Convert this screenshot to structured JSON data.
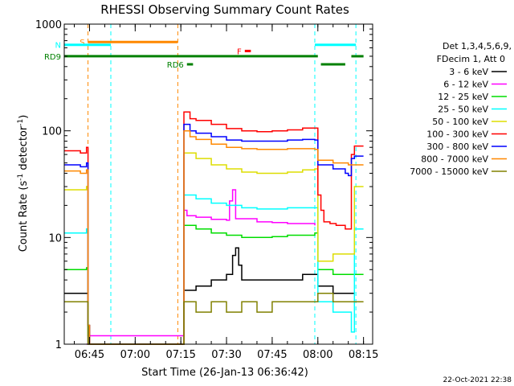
{
  "chart_data": {
    "type": "line",
    "title": "RHESSI Observing Summary Count Rates",
    "xlabel": "Start Time (26-Jan-13 06:36:42)",
    "ylabel": "Count Rate (s⁻¹ detector⁻¹)",
    "ylabel_parts": [
      "Count Rate (s",
      "-1",
      " detector",
      "-1",
      ")"
    ],
    "y_scale": "log",
    "xlim": [
      "06:36:42",
      "08:18:00"
    ],
    "ylim": [
      1,
      1000
    ],
    "x_ticks": [
      "06:45",
      "07:00",
      "07:15",
      "07:30",
      "07:45",
      "08:00",
      "08:15"
    ],
    "y_ticks": [
      "1",
      "10",
      "100",
      "1000"
    ],
    "legend_position": "right",
    "legend_header": [
      "Det 1,3,4,5,6,9,",
      "FDecim 1, Att 0"
    ],
    "series": [
      {
        "name": "3 - 6 keV",
        "color": "#000000",
        "points": [
          [
            "06:36:42",
            3.0
          ],
          [
            "06:44:00",
            3.0
          ],
          [
            "06:44:30",
            1.2
          ],
          [
            "06:45:00",
            1.0
          ],
          [
            "07:15:30",
            1.0
          ],
          [
            "07:16:00",
            3.2
          ],
          [
            "07:20:00",
            3.5
          ],
          [
            "07:25:00",
            4.0
          ],
          [
            "07:30:00",
            4.5
          ],
          [
            "07:32:00",
            6.8
          ],
          [
            "07:33:00",
            8.0
          ],
          [
            "07:34:00",
            5.5
          ],
          [
            "07:35:00",
            4.0
          ],
          [
            "07:40:00",
            4.0
          ],
          [
            "07:45:00",
            4.0
          ],
          [
            "07:50:00",
            4.0
          ],
          [
            "07:55:00",
            4.5
          ],
          [
            "07:58:00",
            4.5
          ],
          [
            "08:00:00",
            3.5
          ],
          [
            "08:05:00",
            3.0
          ],
          [
            "08:10:00",
            3.0
          ],
          [
            "08:12:00",
            3.0
          ]
        ]
      },
      {
        "name": "6 - 12 keV",
        "color": "#ff00ff",
        "points": [
          [
            "06:44:00",
            1.0
          ],
          [
            "06:44:30",
            1.2
          ],
          [
            "07:16:00",
            18.0
          ],
          [
            "07:17:00",
            16.0
          ],
          [
            "07:20:00",
            15.5
          ],
          [
            "07:25:00",
            14.8
          ],
          [
            "07:30:00",
            14.5
          ],
          [
            "07:31:00",
            22.0
          ],
          [
            "07:32:00",
            28.0
          ],
          [
            "07:33:00",
            15.0
          ],
          [
            "07:40:00",
            14.0
          ],
          [
            "07:45:00",
            13.8
          ],
          [
            "07:50:00",
            13.5
          ],
          [
            "07:55:00",
            13.5
          ],
          [
            "07:59:00",
            13.0
          ]
        ]
      },
      {
        "name": "12 - 25 keV",
        "color": "#00dd00",
        "points": [
          [
            "06:36:42",
            5.0
          ],
          [
            "06:43:00",
            5.0
          ],
          [
            "06:44:00",
            5.2
          ],
          [
            "06:44:30",
            1.0
          ],
          [
            "07:15:30",
            1.0
          ],
          [
            "07:16:00",
            13.0
          ],
          [
            "07:20:00",
            12.0
          ],
          [
            "07:25:00",
            11.0
          ],
          [
            "07:30:00",
            10.5
          ],
          [
            "07:35:00",
            10.0
          ],
          [
            "07:40:00",
            10.0
          ],
          [
            "07:45:00",
            10.2
          ],
          [
            "07:50:00",
            10.5
          ],
          [
            "07:55:00",
            10.5
          ],
          [
            "07:59:00",
            11.0
          ],
          [
            "08:00:00",
            5.0
          ],
          [
            "08:05:00",
            4.5
          ],
          [
            "08:10:00",
            4.5
          ],
          [
            "08:12:00",
            4.5
          ],
          [
            "08:13:00",
            4.5
          ],
          [
            "08:15:00",
            4.5
          ]
        ]
      },
      {
        "name": "25 - 50 keV",
        "color": "#00ffff",
        "points": [
          [
            "06:36:42",
            11.0
          ],
          [
            "06:43:00",
            11.0
          ],
          [
            "06:44:00",
            12.0
          ],
          [
            "06:44:30",
            1.5
          ],
          [
            "06:45:00",
            1.0
          ],
          [
            "07:15:30",
            1.0
          ],
          [
            "07:16:00",
            25.0
          ],
          [
            "07:20:00",
            23.0
          ],
          [
            "07:25:00",
            21.0
          ],
          [
            "07:30:00",
            20.0
          ],
          [
            "07:35:00",
            19.0
          ],
          [
            "07:40:00",
            18.5
          ],
          [
            "07:45:00",
            18.5
          ],
          [
            "07:50:00",
            19.0
          ],
          [
            "07:55:00",
            19.0
          ],
          [
            "07:59:00",
            19.0
          ],
          [
            "08:00:00",
            2.5
          ],
          [
            "08:05:00",
            2.0
          ],
          [
            "08:10:00",
            2.0
          ],
          [
            "08:11:00",
            1.3
          ],
          [
            "08:12:00",
            12.0
          ],
          [
            "08:15:00",
            12.0
          ]
        ]
      },
      {
        "name": "50 - 100 keV",
        "color": "#dddd00",
        "points": [
          [
            "06:36:42",
            28.0
          ],
          [
            "06:43:00",
            28.0
          ],
          [
            "06:44:00",
            30.0
          ],
          [
            "06:44:30",
            1.5
          ],
          [
            "06:45:00",
            1.0
          ],
          [
            "07:15:30",
            1.0
          ],
          [
            "07:16:00",
            62.0
          ],
          [
            "07:20:00",
            55.0
          ],
          [
            "07:25:00",
            48.0
          ],
          [
            "07:30:00",
            44.0
          ],
          [
            "07:35:00",
            41.0
          ],
          [
            "07:40:00",
            40.0
          ],
          [
            "07:45:00",
            40.0
          ],
          [
            "07:50:00",
            41.0
          ],
          [
            "07:55:00",
            43.0
          ],
          [
            "07:59:00",
            44.0
          ],
          [
            "08:00:00",
            6.0
          ],
          [
            "08:05:00",
            7.0
          ],
          [
            "08:10:00",
            7.0
          ],
          [
            "08:12:00",
            30.0
          ],
          [
            "08:15:00",
            30.0
          ]
        ]
      },
      {
        "name": "100 - 300 keV",
        "color": "#ff0000",
        "points": [
          [
            "06:36:42",
            65.0
          ],
          [
            "06:42:00",
            62.0
          ],
          [
            "06:44:00",
            70.0
          ],
          [
            "06:44:30",
            1.5
          ],
          [
            "06:45:00",
            1.0
          ],
          [
            "07:15:30",
            1.0
          ],
          [
            "07:16:00",
            150.0
          ],
          [
            "07:18:00",
            130.0
          ],
          [
            "07:20:00",
            125.0
          ],
          [
            "07:25:00",
            115.0
          ],
          [
            "07:30:00",
            105.0
          ],
          [
            "07:35:00",
            100.0
          ],
          [
            "07:40:00",
            98.0
          ],
          [
            "07:45:00",
            100.0
          ],
          [
            "07:50:00",
            102.0
          ],
          [
            "07:55:00",
            106.0
          ],
          [
            "07:59:00",
            106.0
          ],
          [
            "08:00:00",
            25.0
          ],
          [
            "08:01:00",
            18.0
          ],
          [
            "08:02:00",
            14.0
          ],
          [
            "08:04:00",
            13.5
          ],
          [
            "08:06:00",
            13.0
          ],
          [
            "08:09:00",
            12.0
          ],
          [
            "08:10:00",
            12.0
          ],
          [
            "08:11:00",
            60.0
          ],
          [
            "08:12:00",
            72.0
          ],
          [
            "08:15:00",
            72.0
          ]
        ]
      },
      {
        "name": "300 - 800 keV",
        "color": "#0000ff",
        "points": [
          [
            "06:36:42",
            48.0
          ],
          [
            "06:42:00",
            46.0
          ],
          [
            "06:44:00",
            50.0
          ],
          [
            "06:44:30",
            1.5
          ],
          [
            "06:45:00",
            1.0
          ],
          [
            "07:15:30",
            1.0
          ],
          [
            "07:16:00",
            115.0
          ],
          [
            "07:18:00",
            100.0
          ],
          [
            "07:20:00",
            95.0
          ],
          [
            "07:25:00",
            88.0
          ],
          [
            "07:30:00",
            82.0
          ],
          [
            "07:35:00",
            80.0
          ],
          [
            "07:40:00",
            80.0
          ],
          [
            "07:45:00",
            80.0
          ],
          [
            "07:50:00",
            82.0
          ],
          [
            "07:55:00",
            83.0
          ],
          [
            "07:59:00",
            82.0
          ],
          [
            "08:00:00",
            48.0
          ],
          [
            "08:05:00",
            44.0
          ],
          [
            "08:09:00",
            40.0
          ],
          [
            "08:10:00",
            38.0
          ],
          [
            "08:11:00",
            55.0
          ],
          [
            "08:12:00",
            58.0
          ],
          [
            "08:15:00",
            58.0
          ]
        ]
      },
      {
        "name": "800 - 7000 keV",
        "color": "#ff8800",
        "points": [
          [
            "06:36:42",
            42.0
          ],
          [
            "06:42:00",
            40.0
          ],
          [
            "06:44:00",
            43.0
          ],
          [
            "06:44:30",
            1.5
          ],
          [
            "06:45:00",
            1.0
          ],
          [
            "07:15:30",
            1.0
          ],
          [
            "07:16:00",
            100.0
          ],
          [
            "07:18:00",
            88.0
          ],
          [
            "07:20:00",
            83.0
          ],
          [
            "07:25:00",
            75.0
          ],
          [
            "07:30:00",
            70.0
          ],
          [
            "07:35:00",
            68.0
          ],
          [
            "07:40:00",
            67.0
          ],
          [
            "07:45:00",
            67.0
          ],
          [
            "07:50:00",
            68.0
          ],
          [
            "07:55:00",
            68.0
          ],
          [
            "07:59:00",
            67.0
          ],
          [
            "08:00:00",
            53.0
          ],
          [
            "08:05:00",
            50.0
          ],
          [
            "08:09:00",
            50.0
          ],
          [
            "08:10:00",
            48.0
          ],
          [
            "08:11:00",
            48.0
          ],
          [
            "08:12:00",
            48.0
          ],
          [
            "08:15:00",
            48.0
          ]
        ]
      },
      {
        "name": "7000 - 15000 keV",
        "color": "#808000",
        "points": [
          [
            "06:36:42",
            2.5
          ],
          [
            "06:43:00",
            2.5
          ],
          [
            "06:44:00",
            2.5
          ],
          [
            "06:44:30",
            1.0
          ],
          [
            "07:15:30",
            1.0
          ],
          [
            "07:16:00",
            2.5
          ],
          [
            "07:20:00",
            2.0
          ],
          [
            "07:25:00",
            2.5
          ],
          [
            "07:30:00",
            2.0
          ],
          [
            "07:35:00",
            2.5
          ],
          [
            "07:40:00",
            2.0
          ],
          [
            "07:45:00",
            2.5
          ],
          [
            "07:50:00",
            2.5
          ],
          [
            "07:55:00",
            2.5
          ],
          [
            "07:59:00",
            2.5
          ],
          [
            "08:00:00",
            3.0
          ],
          [
            "08:05:00",
            2.5
          ],
          [
            "08:10:00",
            2.5
          ],
          [
            "08:12:00",
            2.5
          ],
          [
            "08:15:00",
            2.5
          ]
        ]
      }
    ],
    "dashed_markers": [
      {
        "time": "06:44:30",
        "color": "#ff8800"
      },
      {
        "time": "06:52:00",
        "color": "#00ffff"
      },
      {
        "time": "07:14:00",
        "color": "#ff8800"
      },
      {
        "time": "07:59:00",
        "color": "#00ffff"
      },
      {
        "time": "08:12:30",
        "color": "#00ffff"
      }
    ],
    "flag_bars": [
      {
        "label": "S",
        "color": "#ff8800",
        "y": 680,
        "start": "06:44:30",
        "end": "07:14:00"
      },
      {
        "label": "N",
        "color": "#00ffff",
        "y": 640,
        "start": "06:36:42",
        "end": "06:52:00"
      },
      {
        "label": "",
        "color": "#00ffff",
        "y": 640,
        "start": "07:59:00",
        "end": "08:12:30"
      },
      {
        "label": "F",
        "color": "#ff0000",
        "y": 560,
        "start": "07:36:00",
        "end": "07:38:00"
      },
      {
        "label": "RD9",
        "color": "#008000",
        "y": 500,
        "start": "06:36:42",
        "end": "08:00:00"
      },
      {
        "label": "",
        "color": "#008000",
        "y": 500,
        "start": "08:11:00",
        "end": "08:15:00"
      },
      {
        "label": "RD6",
        "color": "#008000",
        "y": 420,
        "start": "07:17:00",
        "end": "07:19:00"
      },
      {
        "label": "",
        "color": "#008000",
        "y": 420,
        "start": "08:01:00",
        "end": "08:09:00"
      }
    ],
    "timestamp": "22-Oct-2021 22:38"
  }
}
